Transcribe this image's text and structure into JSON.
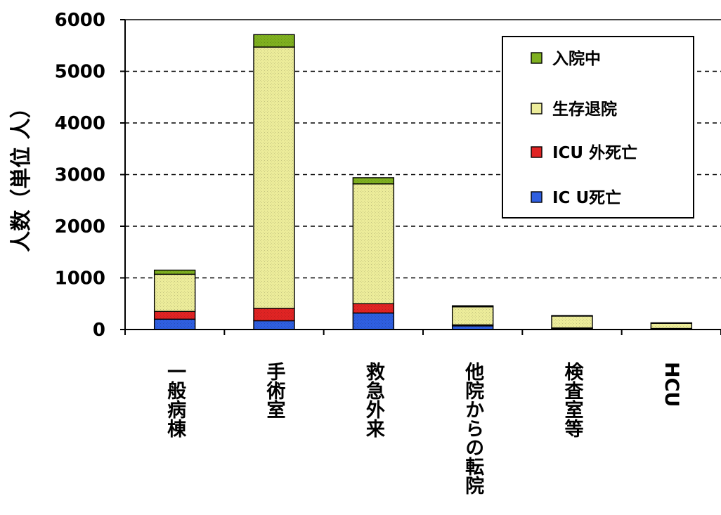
{
  "chart_data": {
    "type": "bar",
    "stacked": true,
    "title": "",
    "xlabel": "",
    "ylabel": "人数（単位 人）",
    "ylim": [
      0,
      6000
    ],
    "yticks": [
      "0",
      "1000",
      "2000",
      "3000",
      "4000",
      "5000",
      "6000"
    ],
    "grid": true,
    "legend_position": "top-right",
    "categories": [
      "一般病棟",
      "手術室",
      "救急外来",
      "他院からの転院",
      "検査室等",
      "HCU"
    ],
    "series": [
      {
        "name": "IC U死亡",
        "color": "#2f5fe0",
        "values": [
          200,
          170,
          320,
          70,
          20,
          10
        ]
      },
      {
        "name": "ICU 外死亡",
        "color": "#e02424",
        "values": [
          150,
          240,
          180,
          20,
          10,
          10
        ]
      },
      {
        "name": "生存退院",
        "color": "#ecec9a",
        "values": [
          720,
          5060,
          2320,
          350,
          230,
          100
        ]
      },
      {
        "name": "入院中",
        "color": "#7fb020",
        "values": [
          80,
          240,
          120,
          20,
          10,
          10
        ]
      }
    ],
    "legend_order": [
      "入院中",
      "生存退院",
      "ICU 外死亡",
      "IC U死亡"
    ]
  }
}
